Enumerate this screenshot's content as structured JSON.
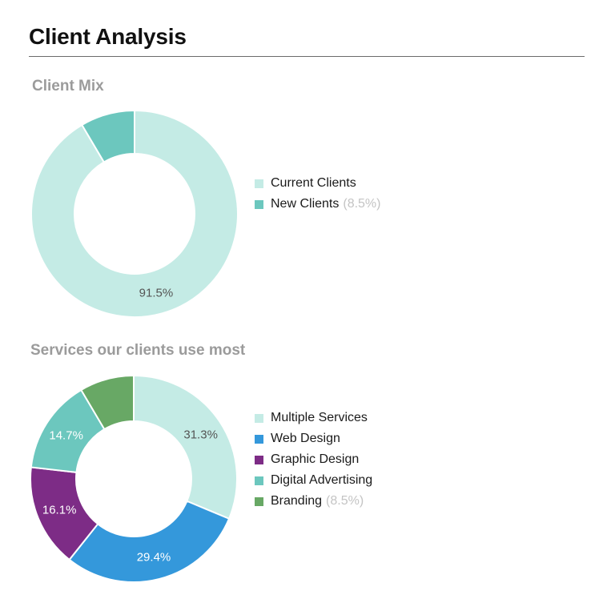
{
  "page_title": "Client Analysis",
  "chart_data": [
    {
      "type": "pie",
      "variant": "donut",
      "title": "Client Mix",
      "categories": [
        "Current Clients",
        "New Clients"
      ],
      "values": [
        91.5,
        8.5
      ],
      "colors": [
        "#c4ebe5",
        "#6cc7be"
      ],
      "slice_labels": [
        "91.5%",
        ""
      ],
      "slice_label_colors": [
        "#555555",
        "#555555"
      ],
      "legend_pcts": [
        "",
        "(8.5%)"
      ],
      "legend_position": "right"
    },
    {
      "type": "pie",
      "variant": "donut",
      "title": "Services our clients use most",
      "categories": [
        "Multiple Services",
        "Web Design",
        "Graphic Design",
        "Digital Advertising",
        "Branding"
      ],
      "values": [
        31.3,
        29.4,
        16.1,
        14.7,
        8.5
      ],
      "colors": [
        "#c4ebe5",
        "#3498db",
        "#7d2c86",
        "#6cc7be",
        "#68a865"
      ],
      "slice_labels": [
        "31.3%",
        "29.4%",
        "16.1%",
        "14.7%",
        ""
      ],
      "slice_label_colors": [
        "#555555",
        "#ffffff",
        "#ffffff",
        "#ffffff",
        "#ffffff"
      ],
      "legend_pcts": [
        "",
        "",
        "",
        "",
        "(8.5%)"
      ],
      "legend_position": "right"
    }
  ]
}
